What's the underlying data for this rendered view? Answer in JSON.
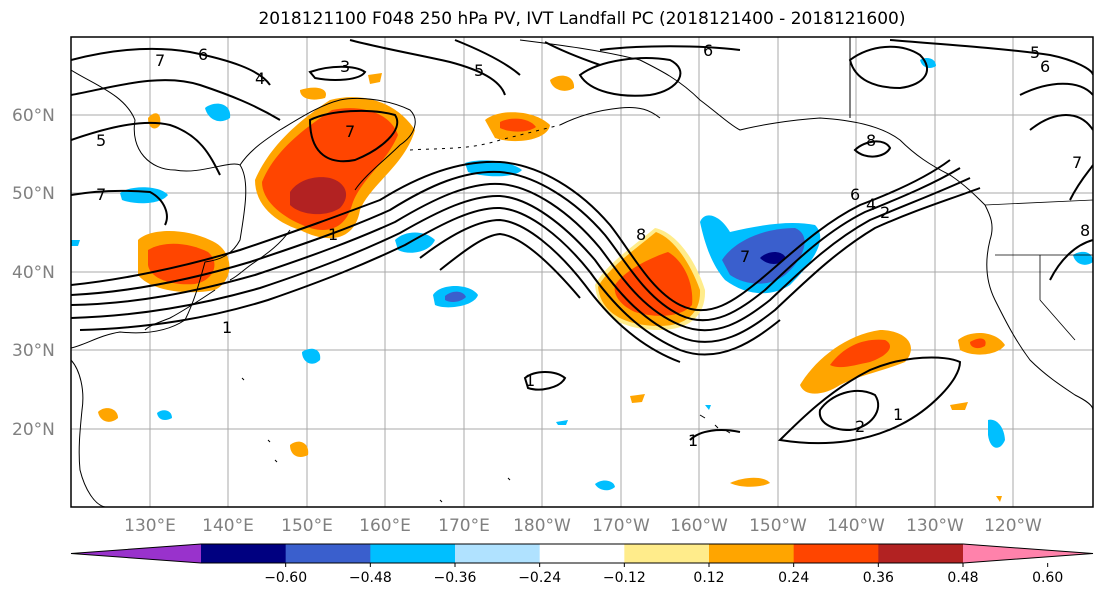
{
  "title": "2018121100 F048 250 hPa PV, IVT Landfall PC (2018121400 - 2018121600)",
  "lat_labels": [
    "60°N",
    "50°N",
    "40°N",
    "30°N",
    "20°N"
  ],
  "lon_labels": [
    "130°E",
    "140°E",
    "150°E",
    "160°E",
    "170°E",
    "180°W",
    "170°W",
    "160°W",
    "150°W",
    "140°W",
    "130°W",
    "120°W"
  ],
  "colorbar": {
    "ticks": [
      "−0.60",
      "−0.48",
      "−0.36",
      "−0.24",
      "−0.12",
      "0.12",
      "0.24",
      "0.36",
      "0.48",
      "0.60"
    ],
    "colors": [
      "#9932cc",
      "#000080",
      "#3a5fcd",
      "#00bfff",
      "#b0e2ff",
      "#ffffff",
      "#ffec8b",
      "#ffa500",
      "#ff4500",
      "#b22222",
      "#ff82ab"
    ]
  },
  "contour_labels": [
    "7",
    "6",
    "4",
    "3",
    "5",
    "5",
    "7",
    "1",
    "1",
    "8",
    "7",
    "6",
    "8",
    "6",
    "4",
    "2",
    "7",
    "1",
    "1",
    "2",
    "1",
    "5",
    "6",
    "7",
    "8"
  ]
}
